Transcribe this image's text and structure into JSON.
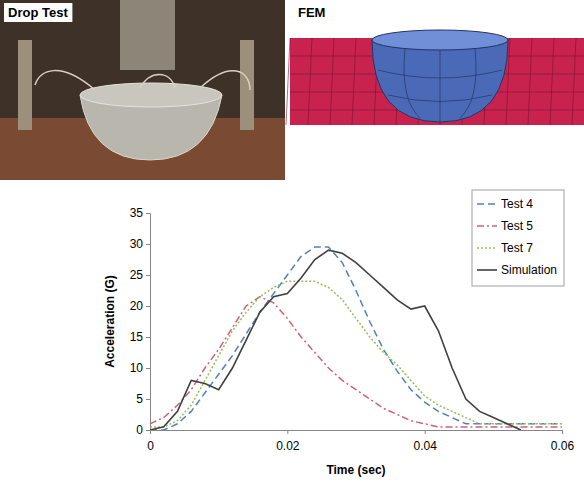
{
  "images": [
    {
      "label": "Drop Test"
    },
    {
      "label": "FEM"
    }
  ],
  "chart_data": {
    "type": "line",
    "x_label": "Time (sec)",
    "y_label": "Acceleration (G)",
    "x": [
      0,
      0.002,
      0.004,
      0.006,
      0.008,
      0.01,
      0.012,
      0.014,
      0.016,
      0.018,
      0.02,
      0.022,
      0.024,
      0.026,
      0.028,
      0.03,
      0.032,
      0.034,
      0.036,
      0.038,
      0.04,
      0.042,
      0.044,
      0.046,
      0.048,
      0.05,
      0.052,
      0.054,
      0.056,
      0.058,
      0.06
    ],
    "xlim": [
      0,
      0.06
    ],
    "xticks": [
      0,
      0.02,
      0.04,
      0.06
    ],
    "ylim": [
      0,
      35
    ],
    "yticks": [
      0,
      5,
      10,
      15,
      20,
      25,
      30,
      35
    ],
    "grid": false,
    "legend": "upper right",
    "series": [
      {
        "name": "Test 4",
        "color": "#4f81bd",
        "line_style": "dashed",
        "values": [
          0,
          0,
          1,
          3,
          6,
          9,
          12,
          15.5,
          19,
          22,
          25,
          28,
          29.5,
          29.5,
          27,
          22.5,
          17.5,
          13,
          9.5,
          6.5,
          4.5,
          3,
          2,
          1,
          1,
          1,
          1,
          1,
          1,
          1,
          1
        ]
      },
      {
        "name": "Test 5",
        "color": "#d0607a",
        "line_style": "dashdot",
        "values": [
          1,
          2,
          4,
          6.5,
          10,
          13,
          16.5,
          20,
          21.5,
          20.5,
          18,
          15,
          12.5,
          10,
          8,
          6.5,
          5,
          3.5,
          2.5,
          1.5,
          1,
          0.5,
          0.5,
          0.5,
          0.5,
          0.5,
          0.5,
          0.5,
          0.5,
          0.5,
          0.5
        ]
      },
      {
        "name": "Test 7",
        "color": "#9bbb59",
        "line_style": "dotted",
        "values": [
          0.5,
          0.5,
          1.5,
          4,
          8,
          12,
          16,
          19,
          21.5,
          23,
          24,
          24,
          24,
          23,
          21,
          18,
          15,
          12.5,
          10.5,
          8,
          5.5,
          4,
          3,
          2,
          1,
          1,
          1,
          1,
          1,
          1,
          1
        ]
      },
      {
        "name": "Simulation",
        "color": "#404040",
        "line_style": "solid",
        "values": [
          0,
          0.5,
          3,
          8,
          7.5,
          6.5,
          10,
          14.5,
          19,
          21.5,
          22,
          24.5,
          27.5,
          29,
          28.5,
          27,
          25,
          23,
          21,
          19.5,
          20,
          16,
          10,
          5,
          3,
          2,
          1,
          0,
          null,
          null,
          null
        ]
      }
    ]
  }
}
